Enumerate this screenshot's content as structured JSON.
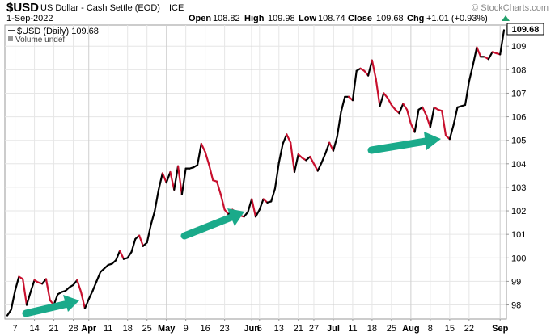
{
  "header": {
    "symbol": "$USD",
    "description": "US Dollar - Cash Settle (EOD)",
    "exchange": "ICE",
    "date": "1-Sep-2022",
    "open_label": "Open",
    "open_value": "108.82",
    "high_label": "High",
    "high_value": "109.98",
    "low_label": "Low",
    "low_value": "108.74",
    "close_label": "Close",
    "close_value": "109.68",
    "chg_label": "Chg",
    "chg_value": "+1.01 (+0.93%)",
    "watermark": "© StockCharts.com"
  },
  "legend": {
    "series_label": "$USD (Daily) 109.68",
    "volume_label": "Volume undef"
  },
  "colors": {
    "up": "#000000",
    "down": "#c8102e",
    "arrow": "#1aaa8a",
    "grid": "#e6e6e6",
    "change_up": "#22a06b"
  },
  "chart_data": {
    "type": "line",
    "ylim": [
      97.4,
      109.9
    ],
    "yticks": [
      98,
      99,
      100,
      101,
      102,
      103,
      104,
      105,
      106,
      107,
      108,
      109
    ],
    "last_value_label": "109.68",
    "x_labels": [
      {
        "label": "7",
        "i": 2,
        "month": false
      },
      {
        "label": "14",
        "i": 7,
        "month": false
      },
      {
        "label": "21",
        "i": 12,
        "month": false
      },
      {
        "label": "28",
        "i": 17,
        "month": false
      },
      {
        "label": "Apr",
        "i": 21,
        "month": true
      },
      {
        "label": "11",
        "i": 26,
        "month": false
      },
      {
        "label": "18",
        "i": 31,
        "month": false
      },
      {
        "label": "25",
        "i": 36,
        "month": false
      },
      {
        "label": "May",
        "i": 41,
        "month": true
      },
      {
        "label": "9",
        "i": 46,
        "month": false
      },
      {
        "label": "16",
        "i": 51,
        "month": false
      },
      {
        "label": "23",
        "i": 56,
        "month": false
      },
      {
        "label": "Jun",
        "i": 63,
        "month": true
      },
      {
        "label": "6",
        "i": 65,
        "month": false
      },
      {
        "label": "13",
        "i": 70,
        "month": false
      },
      {
        "label": "21",
        "i": 75,
        "month": false
      },
      {
        "label": "27",
        "i": 79,
        "month": false
      },
      {
        "label": "Jul",
        "i": 84,
        "month": true
      },
      {
        "label": "11",
        "i": 89,
        "month": false
      },
      {
        "label": "18",
        "i": 94,
        "month": false
      },
      {
        "label": "25",
        "i": 99,
        "month": false
      },
      {
        "label": "Aug",
        "i": 104,
        "month": true
      },
      {
        "label": "8",
        "i": 109,
        "month": false
      },
      {
        "label": "15",
        "i": 114,
        "month": false
      },
      {
        "label": "22",
        "i": 119,
        "month": false
      },
      {
        "label": "Sep",
        "i": 127,
        "month": true
      }
    ],
    "values": [
      97.55,
      97.8,
      98.6,
      99.2,
      99.1,
      98.0,
      98.55,
      99.05,
      98.95,
      98.9,
      99.1,
      98.2,
      98.0,
      98.45,
      98.55,
      98.6,
      98.75,
      98.85,
      99.05,
      98.55,
      97.85,
      98.25,
      98.6,
      99.0,
      99.4,
      99.55,
      99.7,
      99.75,
      99.9,
      100.3,
      99.95,
      100.0,
      100.25,
      100.8,
      100.95,
      100.5,
      100.65,
      101.4,
      102.0,
      102.9,
      103.6,
      103.2,
      103.65,
      102.9,
      103.9,
      102.7,
      103.8,
      103.8,
      103.85,
      103.95,
      104.85,
      104.5,
      103.95,
      103.3,
      103.25,
      102.7,
      102.05,
      101.85,
      102.05,
      101.95,
      101.8,
      101.75,
      101.95,
      102.5,
      101.75,
      102.05,
      102.5,
      102.35,
      102.4,
      102.95,
      104.05,
      104.85,
      105.25,
      104.9,
      103.65,
      104.4,
      104.25,
      104.15,
      104.3,
      104.0,
      103.7,
      104.05,
      104.45,
      104.9,
      104.55,
      105.15,
      106.2,
      106.85,
      106.85,
      106.7,
      107.95,
      108.05,
      107.95,
      107.75,
      108.4,
      107.6,
      106.45,
      107.0,
      106.8,
      106.5,
      106.3,
      106.15,
      106.55,
      106.3,
      105.7,
      105.35,
      106.3,
      106.4,
      106.05,
      105.55,
      106.4,
      106.3,
      106.25,
      105.2,
      105.05,
      105.65,
      106.4,
      106.45,
      106.5,
      107.5,
      108.2,
      108.95,
      108.55,
      108.55,
      108.45,
      108.75,
      108.7,
      108.65,
      109.68
    ]
  }
}
